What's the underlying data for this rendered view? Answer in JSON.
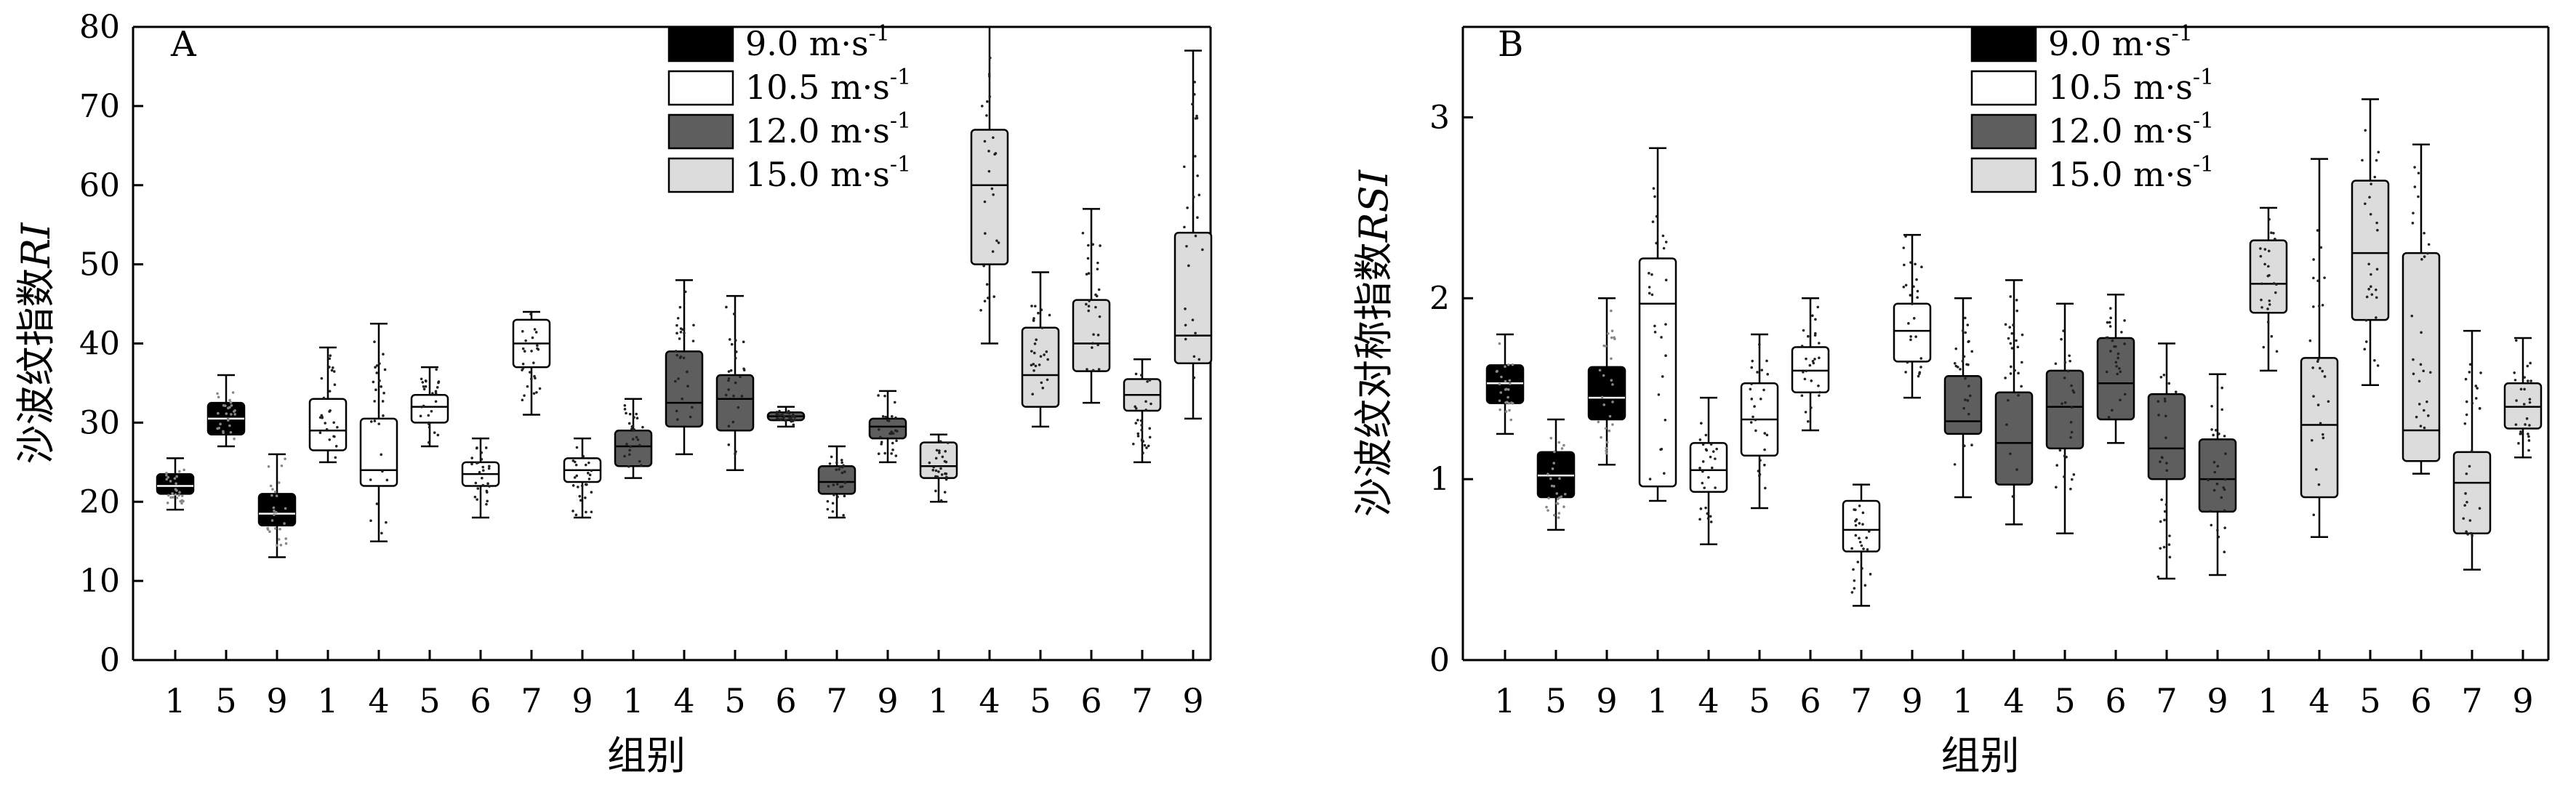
{
  "chart_data": [
    {
      "type": "box",
      "panel_label": "A",
      "ylabel": "沙波纹指数",
      "ylabel_italic": "RI",
      "xlabel": "组别",
      "ylim": [
        0,
        80
      ],
      "yticks": [
        "0",
        "10",
        "20",
        "30",
        "40",
        "50",
        "60",
        "70",
        "80"
      ],
      "categories": [
        "1",
        "5",
        "9",
        "1",
        "4",
        "5",
        "6",
        "7",
        "9",
        "1",
        "4",
        "5",
        "6",
        "7",
        "9",
        "1",
        "4",
        "5",
        "6",
        "7",
        "9"
      ],
      "legend": [
        {
          "label": "9.0 m·s",
          "sup": "-1",
          "color": "#000000"
        },
        {
          "label": "10.5 m·s",
          "sup": "-1",
          "color": "#ffffff"
        },
        {
          "label": "12.0 m·s",
          "sup": "-1",
          "color": "#5e5e5e"
        },
        {
          "label": "15.0 m·s",
          "sup": "-1",
          "color": "#dcdcdc"
        }
      ],
      "boxes": [
        {
          "group": 0,
          "min": 19,
          "q1": 21,
          "median": 22,
          "q3": 23.5,
          "max": 25.5
        },
        {
          "group": 0,
          "min": 27,
          "q1": 28.5,
          "median": 30.5,
          "q3": 32.5,
          "max": 36
        },
        {
          "group": 0,
          "min": 13,
          "q1": 17,
          "median": 18.5,
          "q3": 21,
          "max": 26
        },
        {
          "group": 1,
          "min": 25,
          "q1": 26.5,
          "median": 29,
          "q3": 33,
          "max": 39.5
        },
        {
          "group": 1,
          "min": 15,
          "q1": 22,
          "median": 24,
          "q3": 30.5,
          "max": 42.5
        },
        {
          "group": 1,
          "min": 27,
          "q1": 30,
          "median": 32,
          "q3": 33.5,
          "max": 37
        },
        {
          "group": 1,
          "min": 18,
          "q1": 22,
          "median": 23.5,
          "q3": 25,
          "max": 28
        },
        {
          "group": 1,
          "min": 31,
          "q1": 37,
          "median": 40,
          "q3": 43,
          "max": 44
        },
        {
          "group": 1,
          "min": 18,
          "q1": 22.5,
          "median": 24,
          "q3": 25.5,
          "max": 28
        },
        {
          "group": 2,
          "min": 23,
          "q1": 24.5,
          "median": 27,
          "q3": 29,
          "max": 33
        },
        {
          "group": 2,
          "min": 26,
          "q1": 29.5,
          "median": 32.5,
          "q3": 39,
          "max": 48
        },
        {
          "group": 2,
          "min": 24,
          "q1": 29,
          "median": 33,
          "q3": 36,
          "max": 46
        },
        {
          "group": 2,
          "min": 29.5,
          "q1": 30.3,
          "median": 30.8,
          "q3": 31.3,
          "max": 32
        },
        {
          "group": 2,
          "min": 18,
          "q1": 21,
          "median": 22.5,
          "q3": 24.5,
          "max": 27
        },
        {
          "group": 2,
          "min": 25,
          "q1": 28,
          "median": 29.5,
          "q3": 30.5,
          "max": 34
        },
        {
          "group": 3,
          "min": 20,
          "q1": 23,
          "median": 24.5,
          "q3": 27.5,
          "max": 28.5
        },
        {
          "group": 3,
          "min": 40,
          "q1": 50,
          "median": 60,
          "q3": 67,
          "max": 80
        },
        {
          "group": 3,
          "min": 29.5,
          "q1": 32,
          "median": 36,
          "q3": 42,
          "max": 49
        },
        {
          "group": 3,
          "min": 32.5,
          "q1": 36.5,
          "median": 40,
          "q3": 45.5,
          "max": 57
        },
        {
          "group": 3,
          "min": 25,
          "q1": 31.5,
          "median": 33.5,
          "q3": 35.5,
          "max": 38
        },
        {
          "group": 3,
          "min": 30.5,
          "q1": 37.5,
          "median": 41,
          "q3": 54,
          "max": 77
        }
      ]
    },
    {
      "type": "box",
      "panel_label": "B",
      "ylabel": "沙波纹对称指数",
      "ylabel_italic": "RSI",
      "xlabel": "组别",
      "ylim": [
        0,
        3.5
      ],
      "yticks": [
        "0",
        "1",
        "2",
        "3"
      ],
      "ytick_values": [
        0,
        1,
        2,
        3
      ],
      "categories": [
        "1",
        "5",
        "9",
        "1",
        "4",
        "5",
        "6",
        "7",
        "9",
        "1",
        "4",
        "5",
        "6",
        "7",
        "9",
        "1",
        "4",
        "5",
        "6",
        "7",
        "9"
      ],
      "legend": [
        {
          "label": "9.0 m·s",
          "sup": "-1",
          "color": "#000000"
        },
        {
          "label": "10.5 m·s",
          "sup": "-1",
          "color": "#ffffff"
        },
        {
          "label": "12.0 m·s",
          "sup": "-1",
          "color": "#5e5e5e"
        },
        {
          "label": "15.0 m·s",
          "sup": "-1",
          "color": "#dcdcdc"
        }
      ],
      "boxes": [
        {
          "group": 0,
          "min": 1.25,
          "q1": 1.42,
          "median": 1.53,
          "q3": 1.63,
          "max": 1.8
        },
        {
          "group": 0,
          "min": 0.72,
          "q1": 0.9,
          "median": 1.02,
          "q3": 1.15,
          "max": 1.33
        },
        {
          "group": 0,
          "min": 1.08,
          "q1": 1.33,
          "median": 1.45,
          "q3": 1.62,
          "max": 2.0
        },
        {
          "group": 1,
          "min": 0.88,
          "q1": 0.96,
          "median": 1.97,
          "q3": 2.22,
          "max": 2.83
        },
        {
          "group": 1,
          "min": 0.64,
          "q1": 0.93,
          "median": 1.05,
          "q3": 1.2,
          "max": 1.45
        },
        {
          "group": 1,
          "min": 0.84,
          "q1": 1.13,
          "median": 1.33,
          "q3": 1.53,
          "max": 1.8
        },
        {
          "group": 1,
          "min": 1.27,
          "q1": 1.48,
          "median": 1.6,
          "q3": 1.73,
          "max": 2.0
        },
        {
          "group": 1,
          "min": 0.3,
          "q1": 0.6,
          "median": 0.72,
          "q3": 0.88,
          "max": 0.97
        },
        {
          "group": 1,
          "min": 1.45,
          "q1": 1.65,
          "median": 1.82,
          "q3": 1.97,
          "max": 2.35
        },
        {
          "group": 2,
          "min": 0.9,
          "q1": 1.25,
          "median": 1.32,
          "q3": 1.57,
          "max": 2.0
        },
        {
          "group": 2,
          "min": 0.75,
          "q1": 0.97,
          "median": 1.2,
          "q3": 1.48,
          "max": 2.1
        },
        {
          "group": 2,
          "min": 0.7,
          "q1": 1.17,
          "median": 1.4,
          "q3": 1.6,
          "max": 1.97
        },
        {
          "group": 2,
          "min": 1.2,
          "q1": 1.33,
          "median": 1.53,
          "q3": 1.78,
          "max": 2.02
        },
        {
          "group": 2,
          "min": 0.45,
          "q1": 1.0,
          "median": 1.17,
          "q3": 1.47,
          "max": 1.75
        },
        {
          "group": 2,
          "min": 0.47,
          "q1": 0.82,
          "median": 1.0,
          "q3": 1.22,
          "max": 1.58
        },
        {
          "group": 3,
          "min": 1.6,
          "q1": 1.92,
          "median": 2.08,
          "q3": 2.32,
          "max": 2.5
        },
        {
          "group": 3,
          "min": 0.68,
          "q1": 0.9,
          "median": 1.3,
          "q3": 1.67,
          "max": 2.77
        },
        {
          "group": 3,
          "min": 1.52,
          "q1": 1.88,
          "median": 2.25,
          "q3": 2.65,
          "max": 3.1
        },
        {
          "group": 3,
          "min": 1.03,
          "q1": 1.1,
          "median": 1.27,
          "q3": 2.25,
          "max": 2.85
        },
        {
          "group": 3,
          "min": 0.5,
          "q1": 0.7,
          "median": 0.98,
          "q3": 1.15,
          "max": 1.82
        },
        {
          "group": 3,
          "min": 1.12,
          "q1": 1.28,
          "median": 1.4,
          "q3": 1.53,
          "max": 1.78
        }
      ]
    }
  ]
}
